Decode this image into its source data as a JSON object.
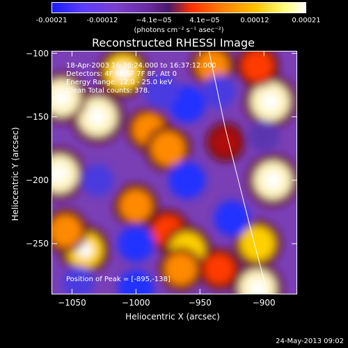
{
  "colorbar": {
    "ticks": [
      "-0.00021",
      "-0.00012",
      "−4.1e−05",
      "4.1e−05",
      "0.00012",
      "0.00021"
    ],
    "unit": "(photons cm⁻² s⁻¹ asec⁻²)"
  },
  "title": "Reconstructed RHESSI Image",
  "annotations": {
    "line1": "18-Apr-2003 16:36:24.000 to 16:37:12.000",
    "line2": "Detectors: 4F 5F 6F 7F 8F, Att 0",
    "line3": "Energy Range: 12.0 - 25.0 keV",
    "line4": "Clean    Total counts: 378.",
    "peak": "Position of Peak = [-895,-138]"
  },
  "timestamp": "24-May-2013 09:02",
  "chart_data": {
    "type": "heatmap",
    "xlabel": "Heliocentric X (arcsec)",
    "ylabel": "Heliocentric Y (arcsec)",
    "xlim": [
      -1066,
      -874
    ],
    "ylim": [
      -290,
      -98
    ],
    "x_ticks": [
      -1050,
      -1000,
      -950,
      -900
    ],
    "x_tick_labels": [
      "−1050",
      "−1000",
      "−950",
      "−900"
    ],
    "y_ticks": [
      -100,
      -150,
      -200,
      -250
    ],
    "y_tick_labels": [
      "−100",
      "−150",
      "−200",
      "−250"
    ],
    "peak": [
      -895,
      -138
    ],
    "blobs": [
      {
        "x": -1030,
        "y": -150,
        "value": 1.0
      },
      {
        "x": -1058,
        "y": -135,
        "value": 0.9
      },
      {
        "x": -1010,
        "y": -115,
        "value": 0.85
      },
      {
        "x": -990,
        "y": -160,
        "value": 0.6
      },
      {
        "x": -1060,
        "y": -195,
        "value": 0.95
      },
      {
        "x": -1040,
        "y": -255,
        "value": 0.85
      },
      {
        "x": -1000,
        "y": -220,
        "value": 0.6
      },
      {
        "x": -975,
        "y": -175,
        "value": 0.7
      },
      {
        "x": -975,
        "y": -240,
        "value": 0.55
      },
      {
        "x": -960,
        "y": -255,
        "value": 0.8
      },
      {
        "x": -965,
        "y": -270,
        "value": 0.6
      },
      {
        "x": -1055,
        "y": -240,
        "value": 0.6
      },
      {
        "x": -895,
        "y": -138,
        "value": 1.0
      },
      {
        "x": -905,
        "y": -110,
        "value": 0.55
      },
      {
        "x": -893,
        "y": -200,
        "value": 0.95
      },
      {
        "x": -940,
        "y": -110,
        "value": 0.6
      },
      {
        "x": -905,
        "y": -250,
        "value": 0.75
      },
      {
        "x": -905,
        "y": -285,
        "value": 0.9
      },
      {
        "x": -935,
        "y": -270,
        "value": 0.5
      },
      {
        "x": -930,
        "y": -170,
        "value": 0.4
      },
      {
        "x": -960,
        "y": -140,
        "value": -0.9
      },
      {
        "x": -960,
        "y": -200,
        "value": -0.9
      },
      {
        "x": -1000,
        "y": -250,
        "value": -0.85
      },
      {
        "x": -1000,
        "y": -285,
        "value": -0.85
      },
      {
        "x": -1030,
        "y": -200,
        "value": -0.6
      },
      {
        "x": -925,
        "y": -230,
        "value": -0.8
      },
      {
        "x": -935,
        "y": -130,
        "value": -0.7
      },
      {
        "x": -1045,
        "y": -280,
        "value": -0.6
      },
      {
        "x": -980,
        "y": -130,
        "value": -0.75
      },
      {
        "x": -900,
        "y": -165,
        "value": -0.55
      }
    ],
    "limb_curve": [
      [
        -943,
        -98
      ],
      [
        -930,
        -160
      ],
      [
        -920,
        -200
      ],
      [
        -910,
        -240
      ],
      [
        -897,
        -290
      ]
    ]
  }
}
